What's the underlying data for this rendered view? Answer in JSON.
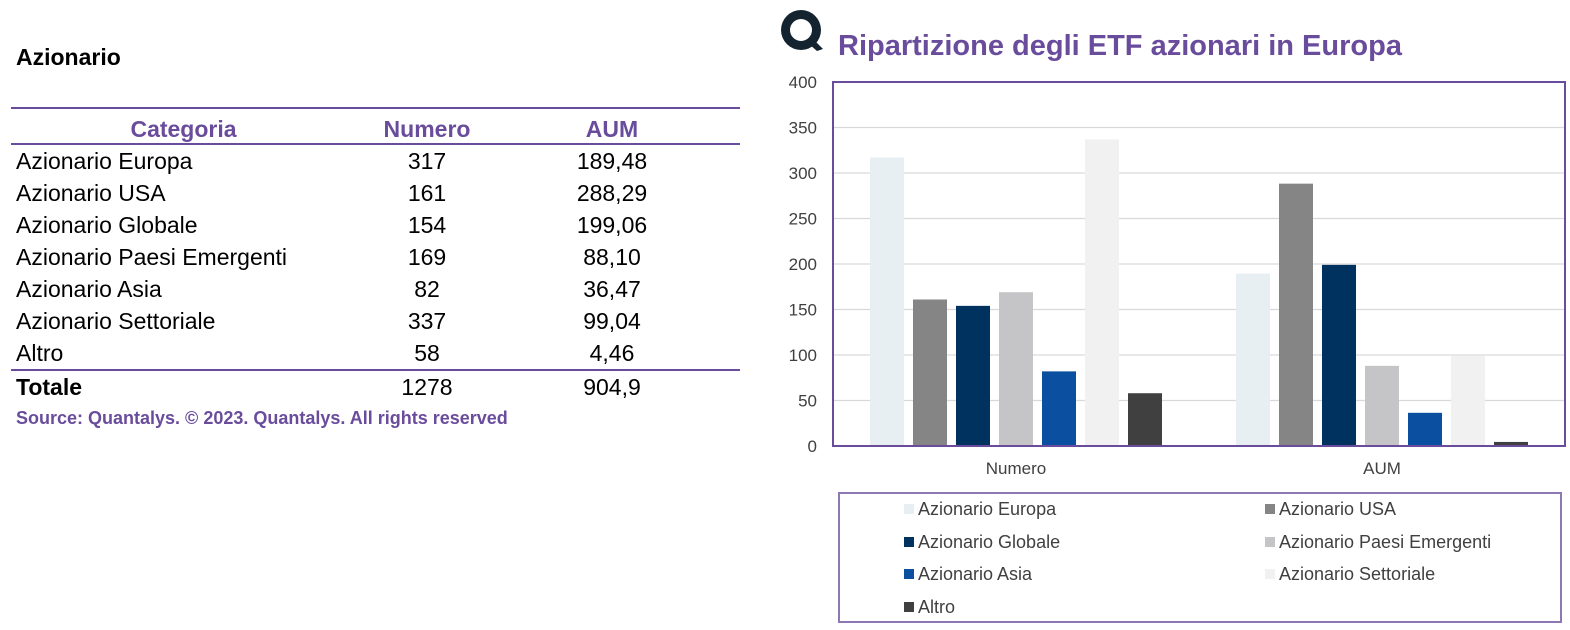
{
  "table": {
    "section_title": "Azionario",
    "headers": {
      "category": "Categoria",
      "number": "Numero",
      "aum": "AUM"
    },
    "rows": [
      {
        "category": "Azionario Europa",
        "number": "317",
        "aum": "189,48"
      },
      {
        "category": "Azionario USA",
        "number": "161",
        "aum": "288,29"
      },
      {
        "category": "Azionario Globale",
        "number": "154",
        "aum": "199,06"
      },
      {
        "category": "Azionario Paesi Emergenti",
        "number": "169",
        "aum": "88,10"
      },
      {
        "category": "Azionario Asia",
        "number": "82",
        "aum": "36,47"
      },
      {
        "category": "Azionario Settoriale",
        "number": "337",
        "aum": "99,04"
      },
      {
        "category": "Altro",
        "number": "58",
        "aum": "4,46"
      }
    ],
    "total": {
      "category": "Totale",
      "number": "1278",
      "aum": "904,9"
    },
    "source": "Source: Quantalys. © 2023. Quantalys. All rights reserved"
  },
  "logo_icon": "quantalys-ring-icon",
  "chart_data": {
    "type": "bar",
    "title": "Ripartizione degli ETF azionari in Europa",
    "categories": [
      "Numero",
      "AUM"
    ],
    "ylim": [
      0,
      400
    ],
    "yticks": [
      0,
      50,
      100,
      150,
      200,
      250,
      300,
      350,
      400
    ],
    "grid": true,
    "legend_position": "bottom",
    "series": [
      {
        "name": "Azionario Europa",
        "color": "#e8eff3",
        "values": [
          317,
          189.48
        ]
      },
      {
        "name": "Azionario USA",
        "color": "#858585",
        "values": [
          161,
          288.29
        ]
      },
      {
        "name": "Azionario Globale",
        "color": "#00325f",
        "values": [
          154,
          199.06
        ]
      },
      {
        "name": "Azionario Paesi Emergenti",
        "color": "#c5c5c8",
        "values": [
          169,
          88.1
        ]
      },
      {
        "name": "Azionario Asia",
        "color": "#0b4fa1",
        "values": [
          82,
          36.47
        ]
      },
      {
        "name": "Azionario Settoriale",
        "color": "#f1f1f1",
        "values": [
          337,
          99.04
        ]
      },
      {
        "name": "Altro",
        "color": "#404040",
        "values": [
          58,
          4.46
        ]
      }
    ]
  }
}
